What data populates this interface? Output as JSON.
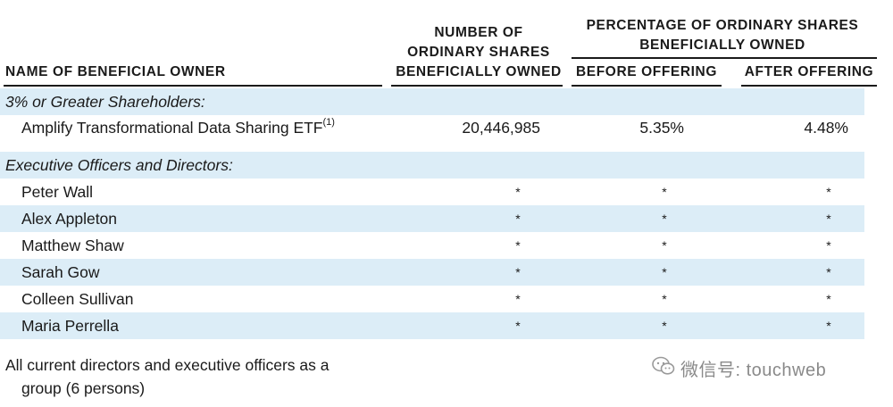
{
  "headers": {
    "name": "NAME OF BENEFICIAL OWNER",
    "shares_line1": "NUMBER OF",
    "shares_line2": "ORDINARY SHARES",
    "shares_line3": "BENEFICIALLY OWNED",
    "pct_line1": "PERCENTAGE OF ORDINARY SHARES",
    "pct_line2": "BENEFICIALLY OWNED",
    "before": "BEFORE OFFERING",
    "after": "AFTER OFFERING"
  },
  "section1": {
    "title": "3% or Greater Shareholders:"
  },
  "holder": {
    "name": "Amplify Transformational Data Sharing ETF",
    "footnote": "(1)",
    "shares": "20,446,985",
    "before": "5.35%",
    "after": "4.48%"
  },
  "section2": {
    "title": "Executive Officers and Directors:"
  },
  "officers": [
    {
      "name": "Peter Wall",
      "shares": "*",
      "before": "*",
      "after": "*"
    },
    {
      "name": "Alex Appleton",
      "shares": "*",
      "before": "*",
      "after": "*"
    },
    {
      "name": "Matthew Shaw",
      "shares": "*",
      "before": "*",
      "after": "*"
    },
    {
      "name": "Sarah Gow",
      "shares": "*",
      "before": "*",
      "after": "*"
    },
    {
      "name": "Colleen Sullivan",
      "shares": "*",
      "before": "*",
      "after": "*"
    },
    {
      "name": "Maria Perrella",
      "shares": "*",
      "before": "*",
      "after": "*"
    }
  ],
  "footer": {
    "line1": "All current directors and executive officers as a",
    "line2": "group (6 persons)"
  },
  "watermark": {
    "text": "微信号: touchweb",
    "icon": "wechat-icon"
  },
  "colors": {
    "row_shade": "#dcedf7",
    "text": "#1a1a1a"
  }
}
